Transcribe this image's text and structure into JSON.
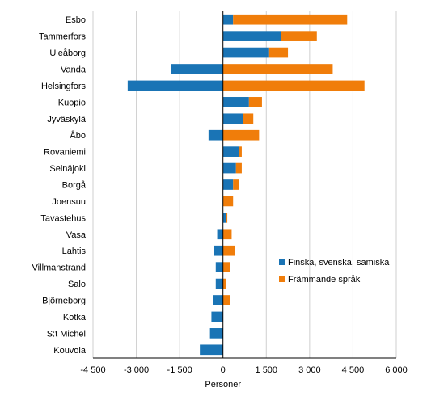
{
  "chart_data": {
    "type": "bar",
    "orientation": "horizontal",
    "stacked": true,
    "xlabel": "Personer",
    "xlim": [
      -4500,
      6000
    ],
    "xticks": [
      -4500,
      -3000,
      -1500,
      0,
      1500,
      3000,
      4500,
      6000
    ],
    "xtick_labels": [
      "-4 500",
      "-3 000",
      "-1 500",
      "0",
      "1 500",
      "3 000",
      "4 500",
      "6 000"
    ],
    "grid": true,
    "legend_position": "right",
    "categories": [
      "Esbo",
      "Tammerfors",
      "Uleåborg",
      "Vanda",
      "Helsingfors",
      "Kuopio",
      "Jyväskylä",
      "Åbo",
      "Rovaniemi",
      "Seinäjoki",
      "Borgå",
      "Joensuu",
      "Tavastehus",
      "Vasa",
      "Lahtis",
      "Villmanstrand",
      "Salo",
      "Björneborg",
      "Kotka",
      "S:t Michel",
      "Kouvola"
    ],
    "series": [
      {
        "name": "Finska, svenska, samiska",
        "color": "#1a74b5",
        "values": [
          350,
          2000,
          1600,
          -1800,
          -3300,
          900,
          700,
          -500,
          550,
          450,
          350,
          0,
          100,
          -200,
          -300,
          -250,
          -250,
          -350,
          -400,
          -450,
          -800
        ]
      },
      {
        "name": "Främmande språk",
        "color": "#f07d0a",
        "values": [
          3950,
          1250,
          650,
          3800,
          4900,
          450,
          350,
          1250,
          100,
          200,
          200,
          350,
          50,
          300,
          400,
          250,
          100,
          250,
          0,
          0,
          0
        ]
      }
    ]
  }
}
